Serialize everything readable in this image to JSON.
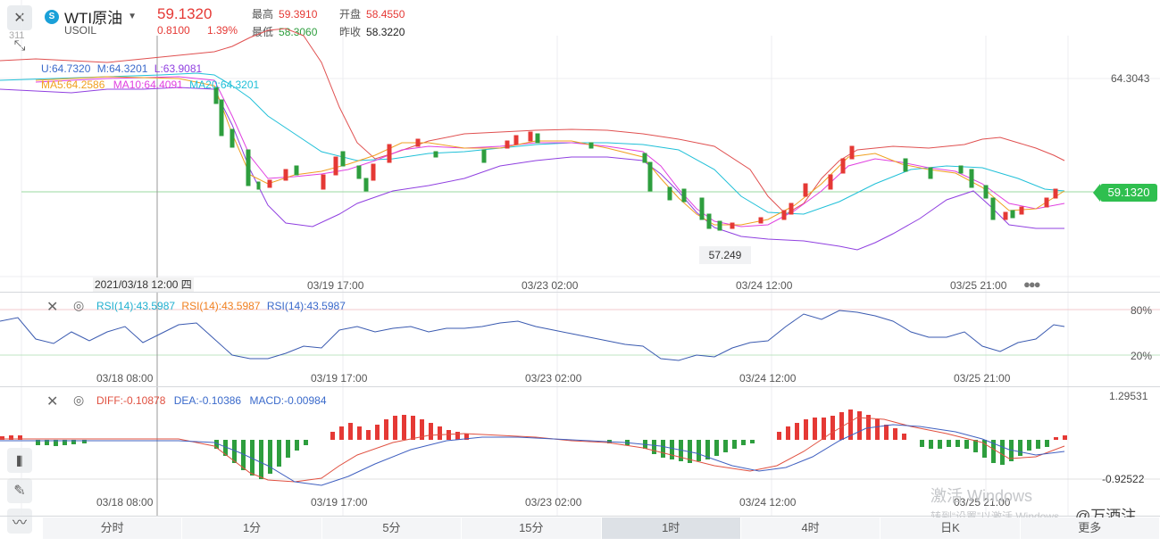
{
  "header": {
    "symbol_name": "WTI原油",
    "symbol_code": "USOIL",
    "price": "59.1320",
    "change": "0.8100",
    "change_pct": "1.39%",
    "high_label": "最高",
    "high_value": "59.3910",
    "open_label": "开盘",
    "open_value": "58.4550",
    "low_label": "最低",
    "low_value": "58.3060",
    "prev_label": "昨收",
    "prev_value": "58.3220"
  },
  "main_chart": {
    "boll_legend": [
      "U:64.7320",
      "M:64.3201",
      "L:63.9081"
    ],
    "ma_legend": [
      "MA5:64.2586",
      "MA10:64.4091",
      "MA20:64.3201"
    ],
    "y_top": "64.3043",
    "y_topleft": "311",
    "current_price_tag": "59.1320",
    "low_tag": "57.249",
    "cursor_date": "2021/03/18 12:00 四",
    "x_labels": [
      "03/19 17:00",
      "03/23 02:00",
      "03/24 12:00",
      "03/25 21:00"
    ]
  },
  "rsi": {
    "legend": [
      "RSI(14):43.5987",
      "RSI(14):43.5987",
      "RSI(14):43.5987"
    ],
    "y_labels": [
      "80%",
      "20%"
    ],
    "x_labels": [
      "03/18 08:00",
      "03/19 17:00",
      "03/23 02:00",
      "03/24 12:00",
      "03/25 21:00"
    ]
  },
  "macd": {
    "legend": [
      "DIFF:-0.10878",
      "DEA:-0.10386",
      "MACD:-0.00984"
    ],
    "y_top": "1.29531",
    "y_bottom": "-0.92522",
    "x_labels": [
      "03/18 08:00",
      "03/19 17:00",
      "03/23 02:00",
      "03/24 12:00",
      "03/25 21:00"
    ]
  },
  "timeframes": [
    "分时",
    "1分",
    "5分",
    "15分",
    "1时",
    "4时",
    "日K",
    "更多"
  ],
  "active_timeframe": "1时",
  "watermark": {
    "line1": "激活 Windows",
    "line2": "转到“设置”以激活 Windows。"
  },
  "brand": "@万酒注",
  "colors": {
    "up": "#e53935",
    "down": "#2e9e3e",
    "ma5": "#f0a020",
    "ma10": "#e040e0",
    "ma20": "#20c0d8",
    "boll_u": "#e05050",
    "boll_l": "#9040e0"
  },
  "icons": [
    "close-icon",
    "compress-icon",
    "eye-icon",
    "draw-icon",
    "chart-icon"
  ]
}
